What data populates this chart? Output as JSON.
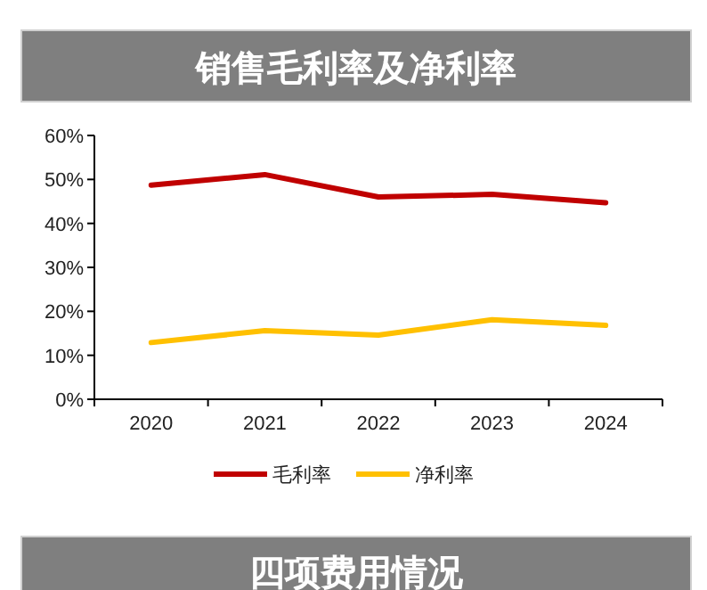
{
  "chart_data": {
    "type": "line",
    "title": "销售毛利率及净利率",
    "categories": [
      "2020",
      "2021",
      "2022",
      "2023",
      "2024"
    ],
    "series": [
      {
        "name": "毛利率",
        "color": "#c00000",
        "values": [
          48.7,
          51.1,
          46.0,
          46.6,
          44.7
        ]
      },
      {
        "name": "净利率",
        "color": "#ffc000",
        "values": [
          12.9,
          15.6,
          14.6,
          18.1,
          16.8
        ]
      }
    ],
    "ylim": [
      0,
      60
    ],
    "yticks": [
      {
        "value": 0,
        "label": "0%"
      },
      {
        "value": 10,
        "label": "10%"
      },
      {
        "value": 20,
        "label": "20%"
      },
      {
        "value": 30,
        "label": "30%"
      },
      {
        "value": 40,
        "label": "40%"
      },
      {
        "value": 50,
        "label": "50%"
      },
      {
        "value": 60,
        "label": "60%"
      }
    ],
    "grid": false,
    "legend": "bottom",
    "marker": "none",
    "line_style": "solid",
    "annotations": [
      "四项费用情况"
    ]
  }
}
